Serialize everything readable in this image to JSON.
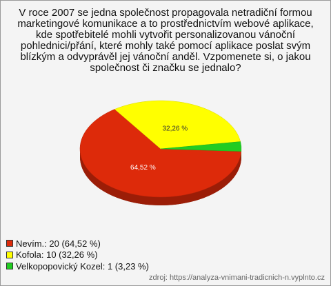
{
  "chart_data": {
    "type": "pie",
    "title": "V roce 2007 se jedna společnost propagovala netradiční formou marketingové komunikace a to prostřednictvím webové aplikace, kde spotřebitelé mohli vytvořit personalizovanou vánoční pohlednici/přání, které mohly také pomocí aplikace poslat svým blízkým a odvyprávěl jej vánoční anděl. Vzpomenete si, o jakou společnost či značku se jednalo?",
    "categories": [
      "Nevím.: 20 (64,52 %)",
      "Kofola: 10 (32,26 %)",
      "Velkopopovický Kozel: 1 (3,23 %)"
    ],
    "values": [
      64.52,
      32.26,
      3.23
    ],
    "value_labels": [
      "64,52 %",
      "32,26 %",
      null
    ],
    "colors": [
      "#dd2a0a",
      "#ffff00",
      "#22cc22"
    ],
    "source": "zdroj: https://analyza-vnimani-tradicnich-n.vyplnto.cz"
  }
}
